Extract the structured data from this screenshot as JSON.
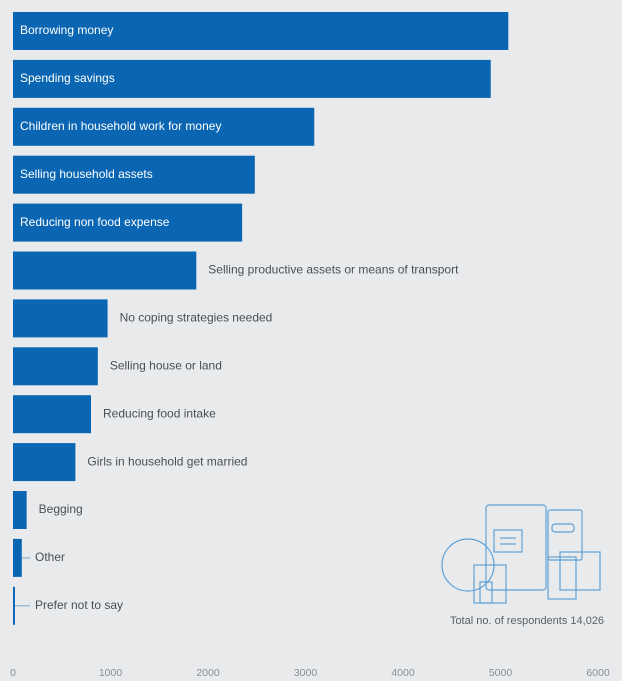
{
  "chart_data": {
    "type": "hbar",
    "categories": [
      "Borrowing money",
      "Spending savings",
      "Children in household work for money",
      "Selling household assets",
      "Reducing non food expense",
      "Selling productive assets or means of transport",
      "No coping strategies needed",
      "Selling house or land",
      "Reducing food intake",
      "Girls in household get married",
      "Begging",
      "Other",
      "Prefer not to say"
    ],
    "values": [
      5080,
      4900,
      3090,
      2480,
      2350,
      1880,
      970,
      870,
      800,
      640,
      140,
      90,
      20
    ],
    "color": "#0a66b2",
    "xlim": [
      0,
      6000
    ],
    "xticks": [
      0,
      1000,
      2000,
      3000,
      4000,
      5000,
      6000
    ],
    "annotation": "Total no. of respondents 14,026"
  }
}
